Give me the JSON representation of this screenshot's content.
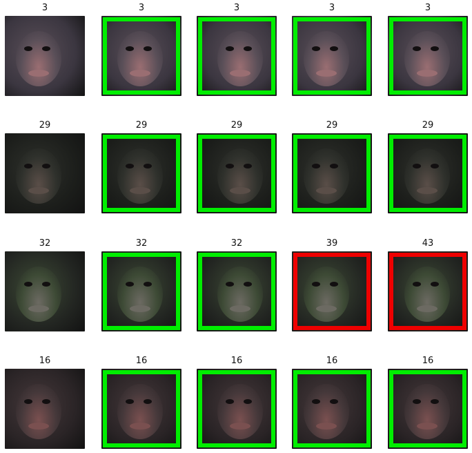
{
  "colors": {
    "match": "#00ee00",
    "mismatch": "#ee0000"
  },
  "rows": [
    {
      "query": "3",
      "results": [
        {
          "label": "3",
          "match": true
        },
        {
          "label": "3",
          "match": true
        },
        {
          "label": "3",
          "match": true
        },
        {
          "label": "3",
          "match": true
        }
      ]
    },
    {
      "query": "29",
      "results": [
        {
          "label": "29",
          "match": true
        },
        {
          "label": "29",
          "match": true
        },
        {
          "label": "29",
          "match": true
        },
        {
          "label": "29",
          "match": true
        }
      ]
    },
    {
      "query": "32",
      "results": [
        {
          "label": "32",
          "match": true
        },
        {
          "label": "32",
          "match": true
        },
        {
          "label": "39",
          "match": false
        },
        {
          "label": "43",
          "match": false
        }
      ]
    },
    {
      "query": "16",
      "results": [
        {
          "label": "16",
          "match": true
        },
        {
          "label": "16",
          "match": true
        },
        {
          "label": "16",
          "match": true
        },
        {
          "label": "16",
          "match": true
        }
      ]
    }
  ]
}
